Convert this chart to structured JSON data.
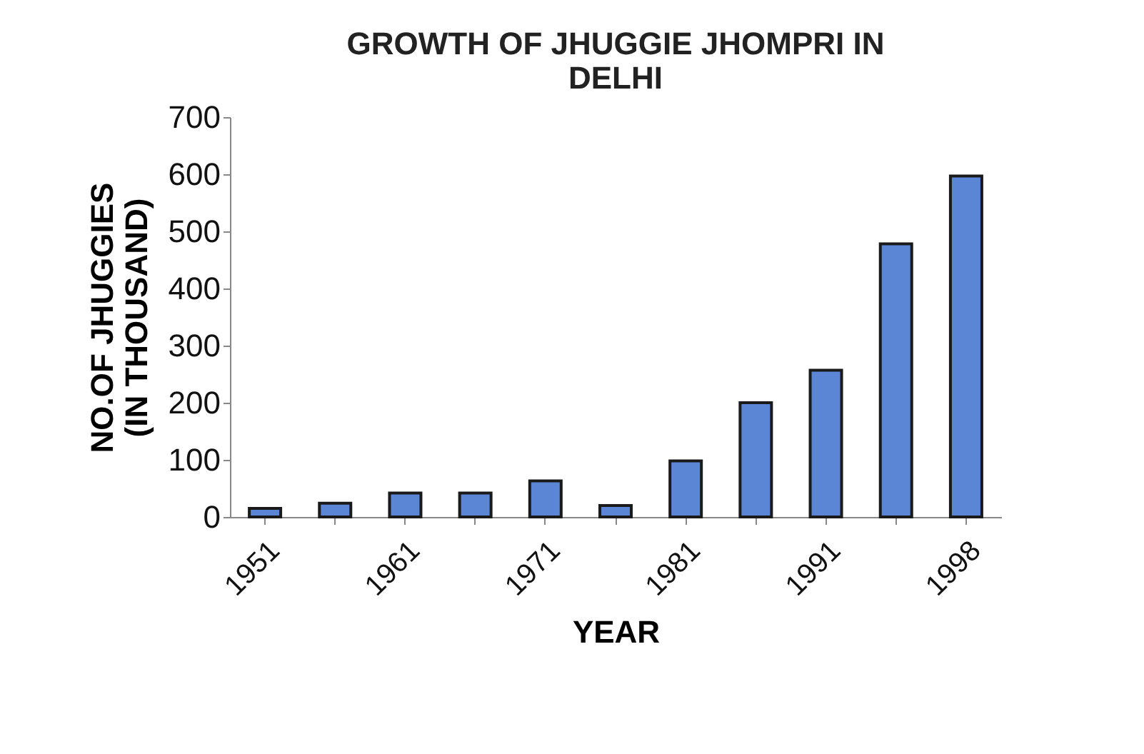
{
  "chart_data": {
    "type": "bar",
    "title": [
      "GROWTH OF JHUGGIE JHOMPRI IN",
      "DELHI"
    ],
    "xlabel": "YEAR",
    "ylabel": [
      "NO.OF JHUGGIES",
      "(IN THOUSAND)"
    ],
    "categories": [
      "1951",
      null,
      "1961",
      null,
      "1971",
      null,
      "1981",
      null,
      "1991",
      null,
      "1998"
    ],
    "values": [
      15,
      24,
      42,
      42,
      63,
      20,
      98,
      200,
      257,
      478,
      597
    ],
    "color": "#5b86d6",
    "ylim": [
      0,
      700
    ],
    "yticks": [
      0,
      100,
      200,
      300,
      400,
      500,
      600,
      700
    ],
    "grid": false
  }
}
